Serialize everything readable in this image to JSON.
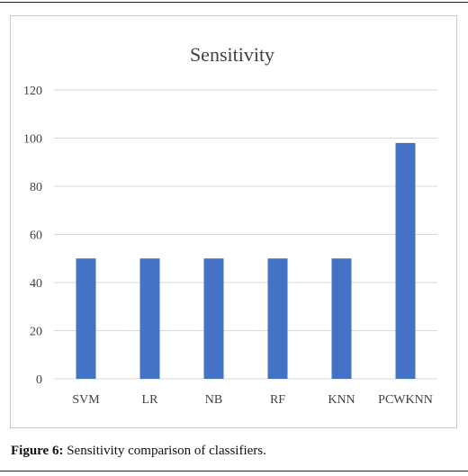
{
  "chart_data": {
    "type": "bar",
    "title": "Sensitivity",
    "categories": [
      "SVM",
      "LR",
      "NB",
      "RF",
      "KNN",
      "PCWKNN"
    ],
    "values": [
      50,
      50,
      50,
      50,
      50,
      98
    ],
    "ylim": [
      0,
      120
    ],
    "yticks": [
      0,
      20,
      40,
      60,
      80,
      100,
      120
    ],
    "grid": true,
    "bar_color": "#4472c4",
    "gridline_color": "#d9d9d9"
  },
  "caption": {
    "label": "Figure 6:",
    "text": " Sensitivity comparison of classifiers."
  }
}
